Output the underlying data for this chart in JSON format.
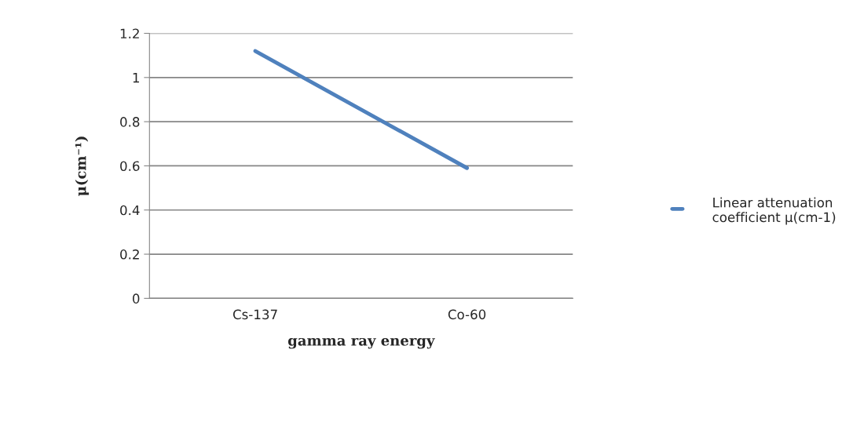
{
  "chart_data": {
    "type": "line",
    "xlabel": "gamma ray energy",
    "ylabel": "μ(cm⁻¹)",
    "categories": [
      "Cs-137",
      "Co-60"
    ],
    "series": [
      {
        "name": "Linear attenuation coefficient μ(cm-1)",
        "color": "#4f81bd",
        "values": [
          1.12,
          0.59
        ]
      }
    ],
    "ylim": [
      0,
      1.2
    ],
    "yticks": [
      0,
      0.2,
      0.4,
      0.6,
      0.8,
      1,
      1.2
    ],
    "grid": "y",
    "legend": "right",
    "marker": "none",
    "line_style": "solid"
  }
}
